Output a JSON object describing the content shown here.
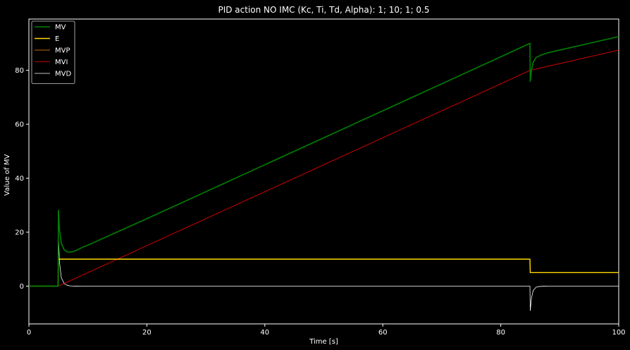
{
  "chart_data": {
    "type": "line",
    "title": "PID action NO IMC (Kc, Ti, Td, Alpha):  1;  10;  1;  0.5",
    "xlabel": "Time [s]",
    "ylabel": "Value of MV",
    "xlim": [
      0,
      100
    ],
    "ylim": [
      -14,
      99
    ],
    "xticks": [
      0,
      20,
      40,
      60,
      80,
      100
    ],
    "yticks": [
      0,
      20,
      40,
      60,
      80
    ],
    "grid": false,
    "legend_position": "top-left",
    "background": "#000000",
    "series": [
      {
        "name": "MV",
        "color": "#008000",
        "x": [
          0,
          4.95,
          5.0,
          5.2,
          5.5,
          6.0,
          6.5,
          7.0,
          7.5,
          8.0,
          9.0,
          10.0,
          20.0,
          40.0,
          60.0,
          80.0,
          84.95,
          85.0,
          85.2,
          85.5,
          86.0,
          87.0,
          88.0,
          90.0,
          100.0
        ],
        "y": [
          0,
          0,
          28.2,
          20.5,
          15.9,
          13.4,
          12.7,
          12.6,
          12.8,
          13.2,
          14.3,
          15.2,
          25.0,
          45.0,
          65.0,
          85.0,
          90.0,
          75.9,
          80.0,
          83.0,
          84.8,
          85.8,
          86.5,
          87.5,
          92.5
        ]
      },
      {
        "name": "E",
        "color": "#FFD700",
        "x": [
          0,
          4.95,
          5.0,
          84.95,
          85.0,
          100.0
        ],
        "y": [
          0,
          0,
          10,
          10,
          5,
          5
        ]
      },
      {
        "name": "MVP",
        "color": "#FF8C00",
        "x": [
          0,
          4.95,
          5.0,
          84.95,
          85.0,
          100.0
        ],
        "y": [
          0,
          0,
          10,
          10,
          5,
          5
        ]
      },
      {
        "name": "MVI",
        "color": "#FF0000",
        "x": [
          0,
          5.0,
          85.0,
          100.0
        ],
        "y": [
          0,
          0,
          80,
          87.5
        ]
      },
      {
        "name": "MVD",
        "color": "#FFFFFF",
        "x": [
          0,
          4.95,
          5.0,
          5.2,
          5.5,
          6.0,
          6.5,
          7.0,
          7.5,
          8.0,
          9.0,
          84.95,
          85.0,
          85.2,
          85.5,
          86.0,
          86.5,
          87.0,
          87.5,
          88.0,
          90.0,
          100.0
        ],
        "y": [
          0,
          0,
          18.2,
          8.7,
          3.1,
          0.9,
          0.3,
          0.1,
          0.03,
          0.01,
          0,
          0,
          -9.1,
          -4.5,
          -1.6,
          -0.4,
          -0.15,
          -0.05,
          -0.02,
          0,
          0,
          0
        ]
      }
    ]
  }
}
